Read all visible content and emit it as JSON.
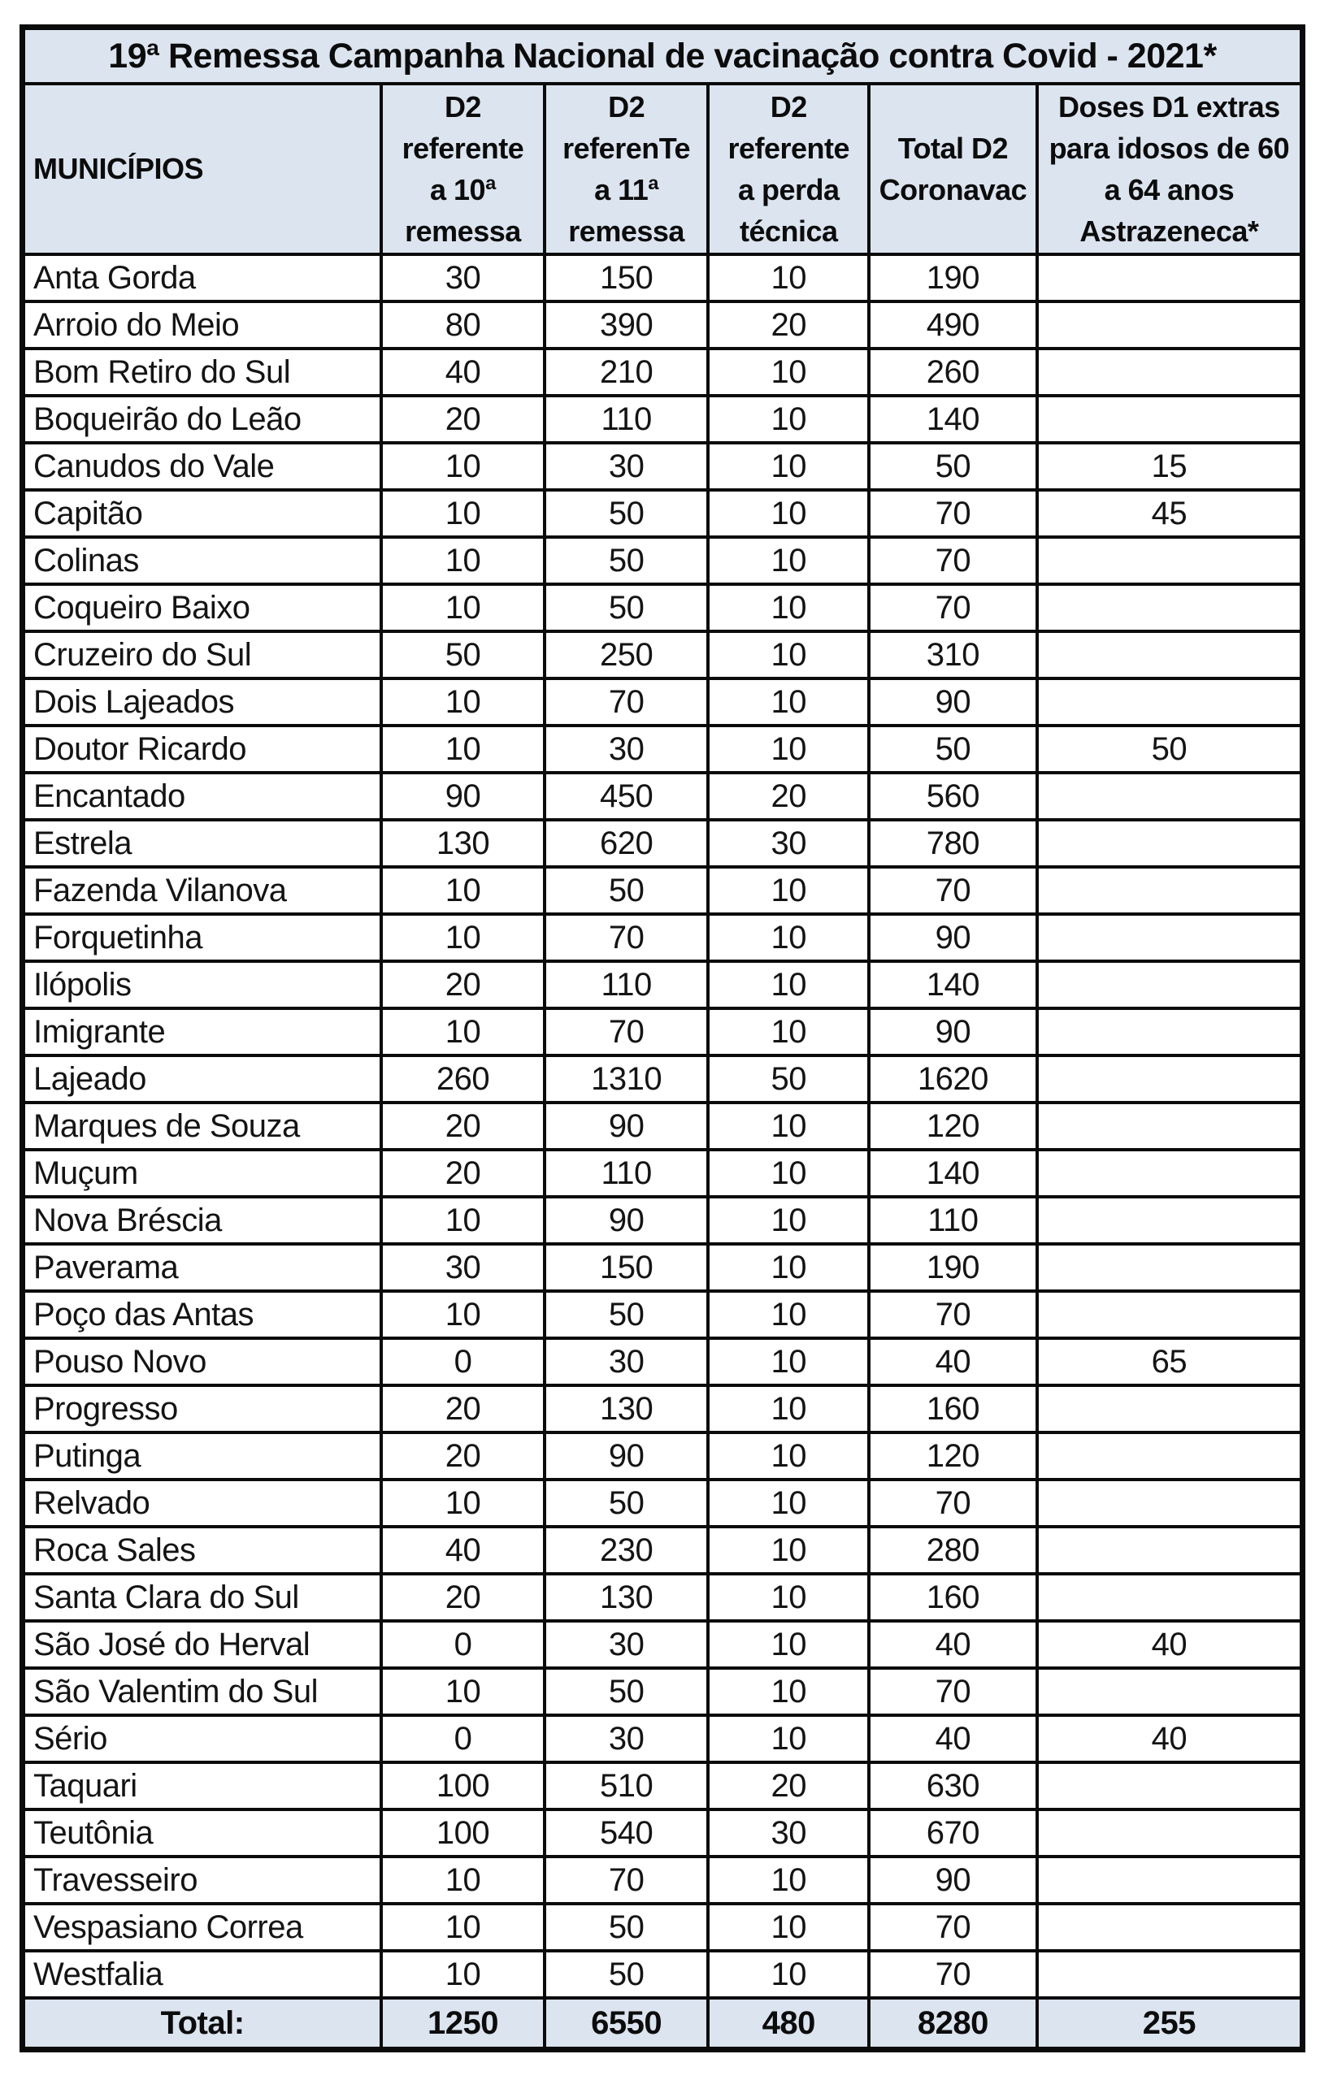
{
  "table": {
    "title": "19ª Remessa Campanha Nacional de vacinação contra Covid - 2021*",
    "columns": [
      "MUNICÍPIOS",
      "D2\nreferente\na 10ª\nremessa",
      "D2\nreferenTe\na 11ª\nremessa",
      "D2\nreferente\na perda\ntécnica",
      "Total D2\nCoronavac",
      "Doses D1 extras\npara idosos de 60\na 64 anos\nAstrazeneca*"
    ],
    "rows": [
      [
        "Anta Gorda",
        "30",
        "150",
        "10",
        "190",
        ""
      ],
      [
        "Arroio do Meio",
        "80",
        "390",
        "20",
        "490",
        ""
      ],
      [
        "Bom Retiro do Sul",
        "40",
        "210",
        "10",
        "260",
        ""
      ],
      [
        "Boqueirão do Leão",
        "20",
        "110",
        "10",
        "140",
        ""
      ],
      [
        "Canudos do Vale",
        "10",
        "30",
        "10",
        "50",
        "15"
      ],
      [
        "Capitão",
        "10",
        "50",
        "10",
        "70",
        "45"
      ],
      [
        "Colinas",
        "10",
        "50",
        "10",
        "70",
        ""
      ],
      [
        "Coqueiro Baixo",
        "10",
        "50",
        "10",
        "70",
        ""
      ],
      [
        "Cruzeiro do Sul",
        "50",
        "250",
        "10",
        "310",
        ""
      ],
      [
        "Dois Lajeados",
        "10",
        "70",
        "10",
        "90",
        ""
      ],
      [
        "Doutor Ricardo",
        "10",
        "30",
        "10",
        "50",
        "50"
      ],
      [
        "Encantado",
        "90",
        "450",
        "20",
        "560",
        ""
      ],
      [
        "Estrela",
        "130",
        "620",
        "30",
        "780",
        ""
      ],
      [
        "Fazenda Vilanova",
        "10",
        "50",
        "10",
        "70",
        ""
      ],
      [
        "Forquetinha",
        "10",
        "70",
        "10",
        "90",
        ""
      ],
      [
        "Ilópolis",
        "20",
        "110",
        "10",
        "140",
        ""
      ],
      [
        "Imigrante",
        "10",
        "70",
        "10",
        "90",
        ""
      ],
      [
        "Lajeado",
        "260",
        "1310",
        "50",
        "1620",
        ""
      ],
      [
        "Marques de Souza",
        "20",
        "90",
        "10",
        "120",
        ""
      ],
      [
        "Muçum",
        "20",
        "110",
        "10",
        "140",
        ""
      ],
      [
        "Nova Bréscia",
        "10",
        "90",
        "10",
        "110",
        ""
      ],
      [
        "Paverama",
        "30",
        "150",
        "10",
        "190",
        ""
      ],
      [
        "Poço das Antas",
        "10",
        "50",
        "10",
        "70",
        ""
      ],
      [
        "Pouso Novo",
        "0",
        "30",
        "10",
        "40",
        "65"
      ],
      [
        "Progresso",
        "20",
        "130",
        "10",
        "160",
        ""
      ],
      [
        "Putinga",
        "20",
        "90",
        "10",
        "120",
        ""
      ],
      [
        "Relvado",
        "10",
        "50",
        "10",
        "70",
        ""
      ],
      [
        "Roca Sales",
        "40",
        "230",
        "10",
        "280",
        ""
      ],
      [
        "Santa Clara do Sul",
        "20",
        "130",
        "10",
        "160",
        ""
      ],
      [
        "São José do Herval",
        "0",
        "30",
        "10",
        "40",
        "40"
      ],
      [
        "São Valentim do Sul",
        "10",
        "50",
        "10",
        "70",
        ""
      ],
      [
        "Sério",
        "0",
        "30",
        "10",
        "40",
        "40"
      ],
      [
        "Taquari",
        "100",
        "510",
        "20",
        "630",
        ""
      ],
      [
        "Teutônia",
        "100",
        "540",
        "30",
        "670",
        ""
      ],
      [
        "Travesseiro",
        "10",
        "70",
        "10",
        "90",
        ""
      ],
      [
        "Vespasiano Correa",
        "10",
        "50",
        "10",
        "70",
        ""
      ],
      [
        "Westfalia",
        "10",
        "50",
        "10",
        "70",
        ""
      ]
    ],
    "total": {
      "label": "Total:",
      "values": [
        "1250",
        "6550",
        "480",
        "8280",
        "255"
      ]
    },
    "colors": {
      "header_bg": "#dbe4ef",
      "border": "#0b0b0b",
      "row_bg": "#ffffff"
    }
  }
}
